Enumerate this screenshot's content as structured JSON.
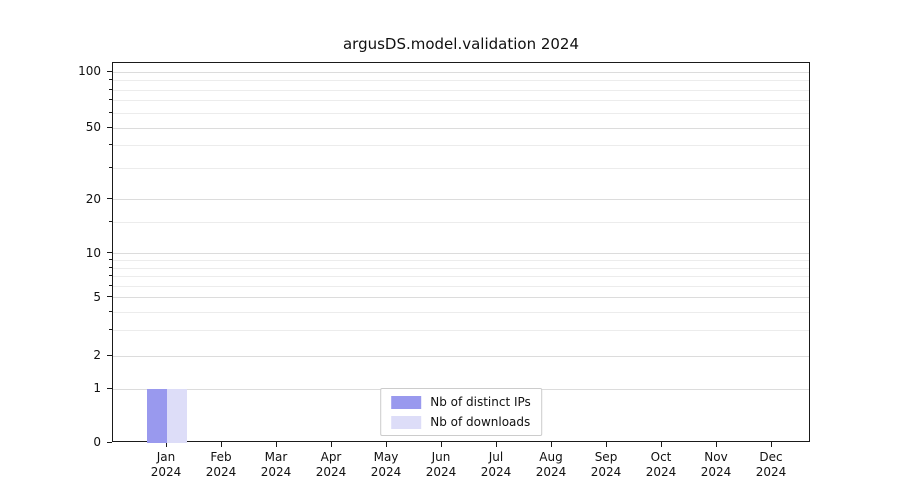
{
  "chart_data": {
    "type": "bar",
    "title": "argusDS.model.validation 2024",
    "categories": [
      "Jan 2024",
      "Feb 2024",
      "Mar 2024",
      "Apr 2024",
      "May 2024",
      "Jun 2024",
      "Jul 2024",
      "Aug 2024",
      "Sep 2024",
      "Oct 2024",
      "Nov 2024",
      "Dec 2024"
    ],
    "series": [
      {
        "name": "Nb of distinct IPs",
        "color": "#9999ee",
        "values": [
          1,
          0,
          0,
          0,
          0,
          0,
          0,
          0,
          0,
          0,
          0,
          0
        ]
      },
      {
        "name": "Nb of downloads",
        "color": "#ddddf8",
        "values": [
          1,
          0,
          0,
          0,
          0,
          0,
          0,
          0,
          0,
          0,
          0,
          0
        ]
      }
    ],
    "y_ticks": [
      0,
      1,
      2,
      5,
      10,
      20,
      50,
      100
    ],
    "y_scale": "symlog",
    "ylim": [
      0,
      115
    ],
    "grid": "horizontal-major-and-minor",
    "legend_position": "lower center"
  }
}
